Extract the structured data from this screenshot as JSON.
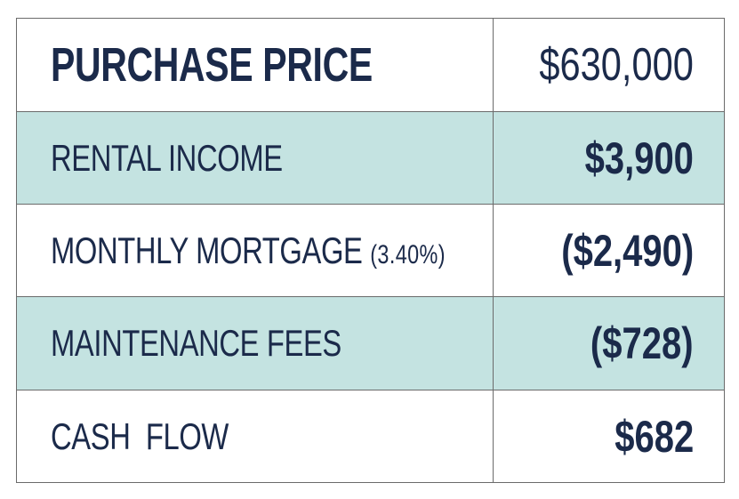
{
  "rows": [
    {
      "label": "PURCHASE PRICE",
      "value": "$630,000"
    },
    {
      "label": "RENTAL INCOME",
      "value": "$3,900"
    },
    {
      "label": "MONTHLY MORTGAGE",
      "note": "(3.40%)",
      "value": "($2,490)"
    },
    {
      "label": "MAINTENANCE FEES",
      "value": "($728)"
    },
    {
      "label": "CASH  FLOW",
      "value": "$682"
    }
  ],
  "colors": {
    "text": "#1b2a4a",
    "shaded_row": "#c4e3e1",
    "border": "#6b6b6b"
  }
}
